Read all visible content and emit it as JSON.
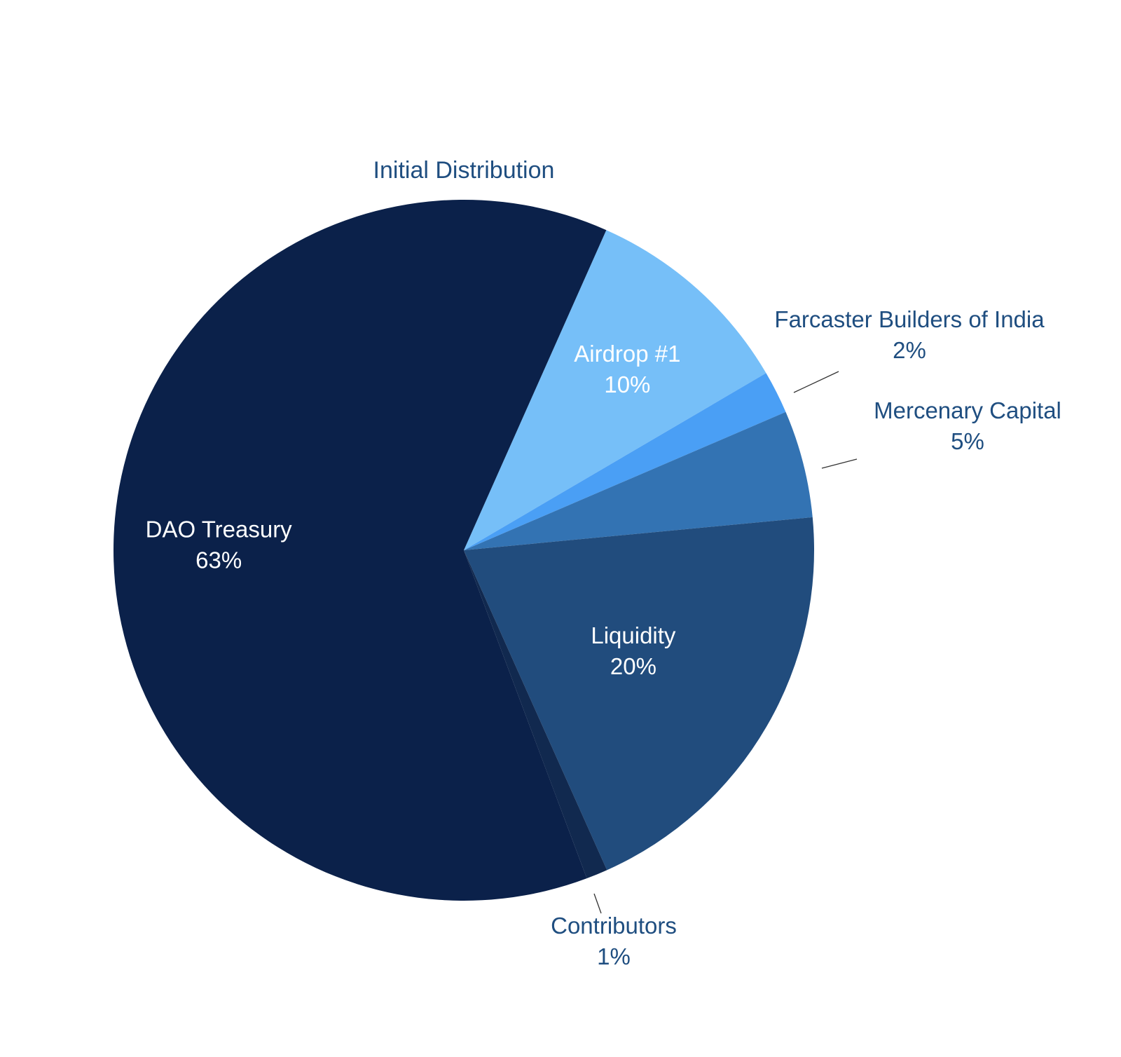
{
  "chart_data": {
    "type": "pie",
    "title": "Initial Distribution",
    "slices": [
      {
        "label": "Airdrop #1",
        "value": 10,
        "value_label": "10%",
        "color": "#76bff8",
        "label_position": "inside"
      },
      {
        "label": "Farcaster Builders of India",
        "value": 2,
        "value_label": "2%",
        "color": "#4a9ff5",
        "label_position": "outside"
      },
      {
        "label": "Mercenary Capital",
        "value": 5,
        "value_label": "5%",
        "color": "#3373b3",
        "label_position": "outside"
      },
      {
        "label": "Liquidity",
        "value": 20,
        "value_label": "20%",
        "color": "#214c7d",
        "label_position": "inside"
      },
      {
        "label": "Contributors",
        "value": 1,
        "value_label": "1%",
        "color": "#11294f",
        "label_position": "outside"
      },
      {
        "label": "DAO Treasury",
        "value": 63,
        "value_label": "63%",
        "color": "#0b214a",
        "label_position": "inside"
      }
    ],
    "start_angle_deg": 24,
    "direction": "clockwise",
    "colors": {
      "inside_label": "#ffffff",
      "outside_label": "#1f4e80",
      "leader_line": "#333333"
    }
  }
}
